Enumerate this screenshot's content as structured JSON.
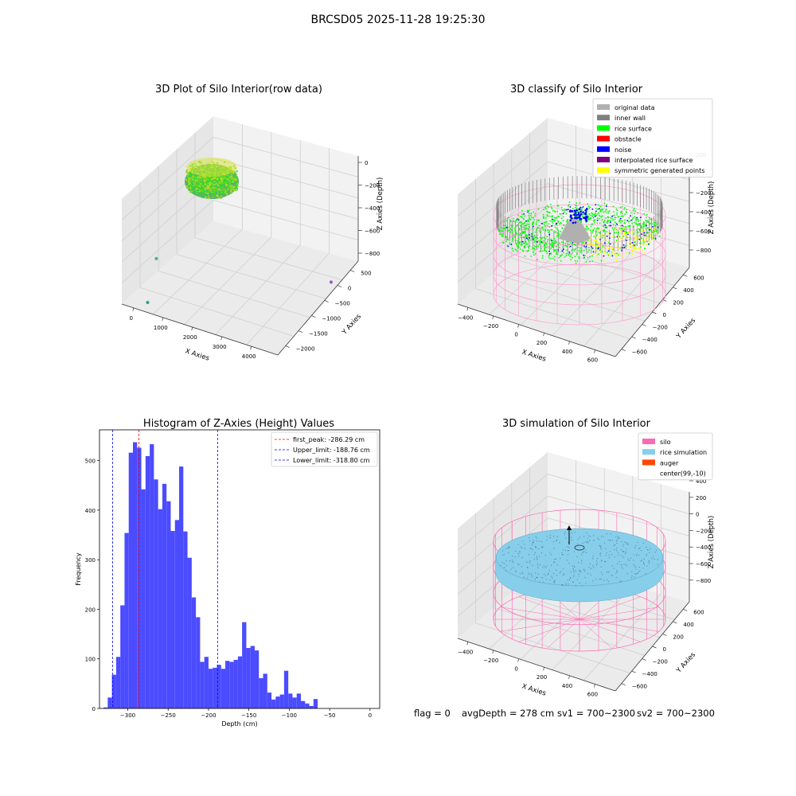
{
  "figure_title": "BRCSD05 2025-11-28 19:25:30",
  "status": {
    "flag": "flag = 0",
    "avg_depth": "avgDepth = 278 cm",
    "sv1": "sv1 = 700~2300",
    "sv2": "sv2 = 700~2300"
  },
  "colors": {
    "hist_bar": "#4b4bff",
    "first_peak": "#ff0000",
    "limit": "#0000ff",
    "pane": "#f0f0f0",
    "silo": "#ff69b4",
    "rice_sim": "#87ceeb",
    "auger": "#ff4500",
    "rice_surface": "#00ff00",
    "noise": "#0000ff",
    "original": "#b0b0b0",
    "inner_wall": "#808080",
    "obstacle": "#ff0000",
    "interp": "#800080",
    "symmetric": "#ffff00"
  },
  "chart_data": [
    {
      "type": "scatter",
      "title": "3D Plot of Silo Interior(row data)",
      "projection": "3d",
      "xlabel": "X Axies",
      "ylabel": "Y Axies",
      "zlabel": "Z Axies (Depth)",
      "x_ticks": [
        "0",
        "1000",
        "2000",
        "3000",
        "4000"
      ],
      "y_ticks": [
        "500",
        "0",
        "−500",
        "−1000",
        "−1500",
        "−2000"
      ],
      "z_ticks": [
        "0",
        "−200",
        "−400",
        "−600",
        "−800"
      ],
      "x_range": [
        -500,
        4000
      ],
      "y_range": [
        -2000,
        700
      ],
      "z_range": [
        -900,
        0
      ],
      "grid": true,
      "outliers": [
        {
          "x": 400,
          "y": 600,
          "z": -450,
          "color": "#3cb88a"
        },
        {
          "x": 150,
          "y": 600,
          "z": -850,
          "color": "#2a9d8f"
        },
        {
          "x": 3900,
          "y": -1200,
          "z": -850,
          "color": "#9b59b6"
        }
      ]
    },
    {
      "type": "scatter",
      "title": "3D classify of Silo Interior",
      "projection": "3d",
      "xlabel": "X Axies",
      "ylabel": "Y Axies",
      "zlabel": "Z Axies (Depth)",
      "x_ticks": [
        "−400",
        "−200",
        "0",
        "200",
        "400",
        "600"
      ],
      "y_ticks": [
        "600",
        "400",
        "200",
        "0",
        "−200",
        "−400",
        "−600"
      ],
      "z_ticks": [
        "200",
        "0",
        "−200",
        "−400",
        "−600",
        "−800"
      ],
      "grid": true,
      "legend_position": "top-right",
      "legend": [
        {
          "label": "original data",
          "color": "#b0b0b0"
        },
        {
          "label": "inner wall",
          "color": "#808080"
        },
        {
          "label": "rice surface",
          "color": "#00ff00"
        },
        {
          "label": "obstacle",
          "color": "#ff0000"
        },
        {
          "label": "noise",
          "color": "#0000ff"
        },
        {
          "label": "interpolated rice surface",
          "color": "#800080"
        },
        {
          "label": "symmetric generated points",
          "color": "#ffff00"
        }
      ]
    },
    {
      "type": "bar",
      "title": "Histogram of Z-Axies (Height) Values",
      "xlabel": "Depth (cm)",
      "ylabel": "Frequency",
      "xlim": [
        -335,
        12
      ],
      "ylim": [
        0,
        562
      ],
      "x_ticks": [
        -300,
        -250,
        -200,
        -150,
        -100,
        -50,
        0
      ],
      "y_ticks": [
        0,
        100,
        200,
        300,
        400,
        500
      ],
      "bin_start": -330,
      "bin_width": 5.2,
      "values": [
        2,
        22,
        68,
        104,
        208,
        354,
        516,
        537,
        526,
        442,
        509,
        533,
        462,
        402,
        453,
        418,
        358,
        380,
        488,
        357,
        304,
        224,
        184,
        94,
        104,
        80,
        82,
        88,
        80,
        96,
        94,
        98,
        105,
        174,
        122,
        126,
        117,
        61,
        70,
        32,
        18,
        24,
        28,
        76,
        30,
        22,
        30,
        15,
        10,
        5,
        19
      ],
      "vlines": [
        {
          "x": -286.29,
          "color": "#ff0000",
          "label": "first_peak: -286.29 cm"
        },
        {
          "x": -188.76,
          "color": "#0000ff",
          "label": "Upper_limit: -188.76 cm"
        },
        {
          "x": -318.8,
          "color": "#0000ff",
          "label": "Lower_limit: -318.80 cm"
        }
      ],
      "legend_position": "top-right",
      "grid": false
    },
    {
      "type": "area",
      "title": "3D simulation of Silo Interior",
      "projection": "3d",
      "xlabel": "X Axies",
      "ylabel": "Y Axies",
      "zlabel": "Z Axies (Depth)",
      "x_ticks": [
        "−400",
        "−200",
        "0",
        "200",
        "400",
        "600"
      ],
      "y_ticks": [
        "600",
        "400",
        "200",
        "0",
        "−200",
        "−400",
        "−600"
      ],
      "z_ticks": [
        "400",
        "200",
        "0",
        "−200",
        "−400",
        "−600",
        "−800"
      ],
      "grid": true,
      "legend_position": "top-right",
      "legend": [
        {
          "label": "silo",
          "color": "#ff69b4"
        },
        {
          "label": "rice simulation",
          "color": "#87ceeb"
        },
        {
          "label": "auger",
          "color": "#ff4500"
        },
        {
          "label": "center(99,-10)",
          "color": null
        }
      ]
    }
  ]
}
